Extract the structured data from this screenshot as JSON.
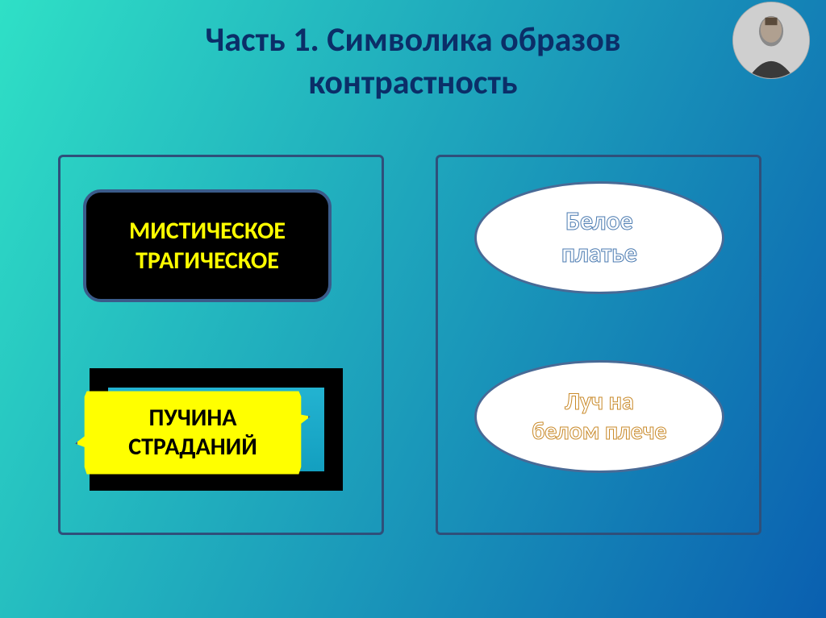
{
  "background": {
    "gradient_start": "#2fe0c6",
    "gradient_end": "#0a5fb0",
    "angle_deg": 115
  },
  "title": {
    "line1": "Часть 1. Символика образов",
    "line2": "контрастность",
    "color": "#0b2e68",
    "fontsize": 42
  },
  "portrait": {
    "diameter": 96,
    "bg": "#d8d8d8"
  },
  "panel_border": {
    "color": "#2f4f7a",
    "width": 3
  },
  "left": {
    "box1": {
      "bg": "#000000",
      "border_color": "#3a5b8a",
      "border_width": 4,
      "text_color": "#ffff00",
      "fontsize": 30,
      "line1": "МИСТИЧЕСКОЕ",
      "line2": "ТРАГИЧЕСКОЕ"
    },
    "frame": {
      "border_color": "#000000",
      "border_width": 22,
      "inner_bg": "#1aa8c7"
    },
    "callout": {
      "fill": "#ffff00",
      "stroke": "#3a5b8a",
      "stroke_width": 3,
      "text_color": "#000000",
      "fontsize": 30,
      "line1": "ПУЧИНА",
      "line2": "СТРАДАНИЙ"
    }
  },
  "right": {
    "ellipse1": {
      "fill": "#ffffff",
      "stroke": "#486a96",
      "stroke_width": 3,
      "text_fill": "#ffffff",
      "text_stroke": "#4a7ab0",
      "fontsize": 32,
      "line1": "Белое",
      "line2": "платье"
    },
    "ellipse2": {
      "fill": "#ffffff",
      "stroke": "#486a96",
      "stroke_width": 3,
      "text_fill": "#ffffff",
      "text_stroke": "#c98a2a",
      "fontsize": 30,
      "line1": "Луч на",
      "line2": "белом плече"
    }
  }
}
